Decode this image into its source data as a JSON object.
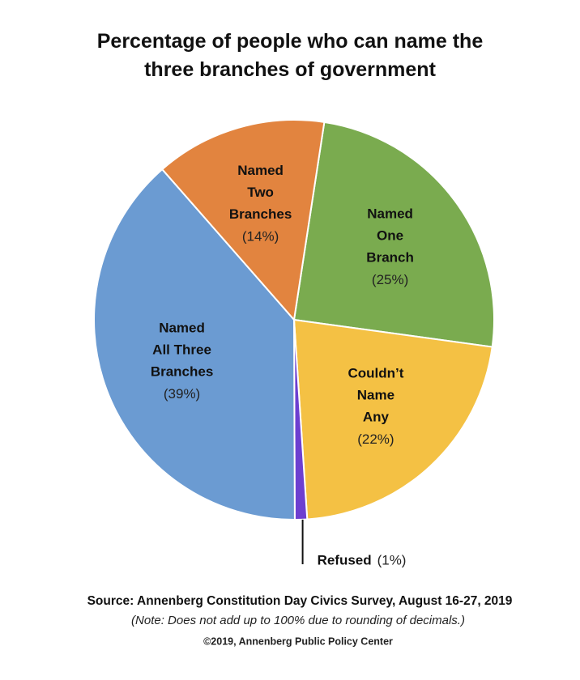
{
  "chart_data": {
    "type": "pie",
    "title": "Percentage of people who can name the\nthree branches of government",
    "categories": [
      "Named\nOne\nBranch",
      "Couldn’t\nName\nAny",
      "Refused",
      "Named\nAll Three\nBranches",
      "Named\nTwo\nBranches"
    ],
    "values": [
      25,
      22,
      1,
      39,
      14
    ],
    "value_labels": [
      "(25%)",
      "(22%)",
      "(1%)",
      "(39%)",
      "(14%)"
    ],
    "colors": [
      "#7aab4f",
      "#f4c144",
      "#6d3fd0",
      "#6b9bd2",
      "#e2843f"
    ],
    "source": "Source: Annenberg Constitution Day Civics Survey, August 16-27, 2019",
    "note": "(Note: Does not add up to 100% due to rounding of decimals.)",
    "copyright": "©2019, Annenberg Public Policy Center"
  }
}
